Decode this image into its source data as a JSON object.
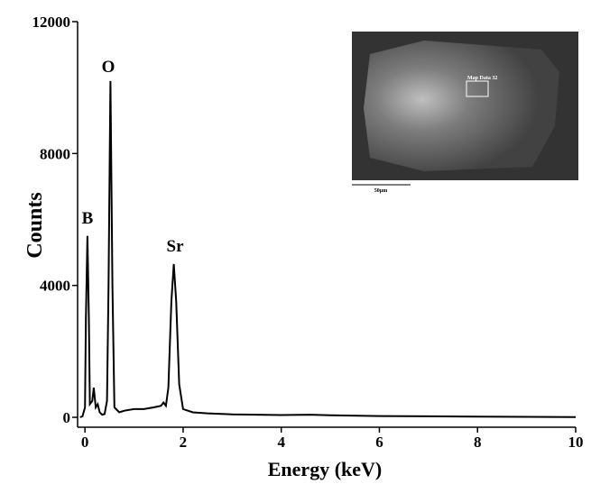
{
  "chart_data": {
    "type": "line",
    "x_label": "Energy (keV)",
    "y_label": "Counts",
    "x": [
      -0.1,
      -0.05,
      0,
      0.02,
      0.05,
      0.08,
      0.1,
      0.15,
      0.18,
      0.22,
      0.26,
      0.3,
      0.35,
      0.4,
      0.45,
      0.48,
      0.52,
      0.56,
      0.6,
      0.7,
      0.8,
      1.0,
      1.2,
      1.4,
      1.55,
      1.6,
      1.65,
      1.7,
      1.76,
      1.81,
      1.86,
      1.92,
      2.0,
      2.2,
      2.5,
      3,
      4,
      4.6,
      5,
      6,
      7,
      8,
      9,
      10
    ],
    "values": [
      0,
      30,
      300,
      3000,
      5500,
      3000,
      400,
      500,
      900,
      300,
      400,
      150,
      80,
      100,
      500,
      4000,
      10200,
      4000,
      300,
      150,
      200,
      250,
      250,
      300,
      350,
      450,
      350,
      900,
      3500,
      4650,
      3500,
      1000,
      250,
      150,
      120,
      90,
      70,
      80,
      60,
      40,
      30,
      20,
      15,
      10
    ],
    "color": "#000000",
    "xlim": [
      -0.15,
      10
    ],
    "ylim": [
      -300,
      12000
    ],
    "xticks": [
      0,
      2,
      4,
      6,
      8,
      10
    ],
    "yticks": [
      0,
      4000,
      8000,
      12000
    ],
    "annotations": [
      "B",
      "O",
      "Sr"
    ],
    "inset_label": "Map Data 32",
    "inset_scale": "50µm"
  }
}
